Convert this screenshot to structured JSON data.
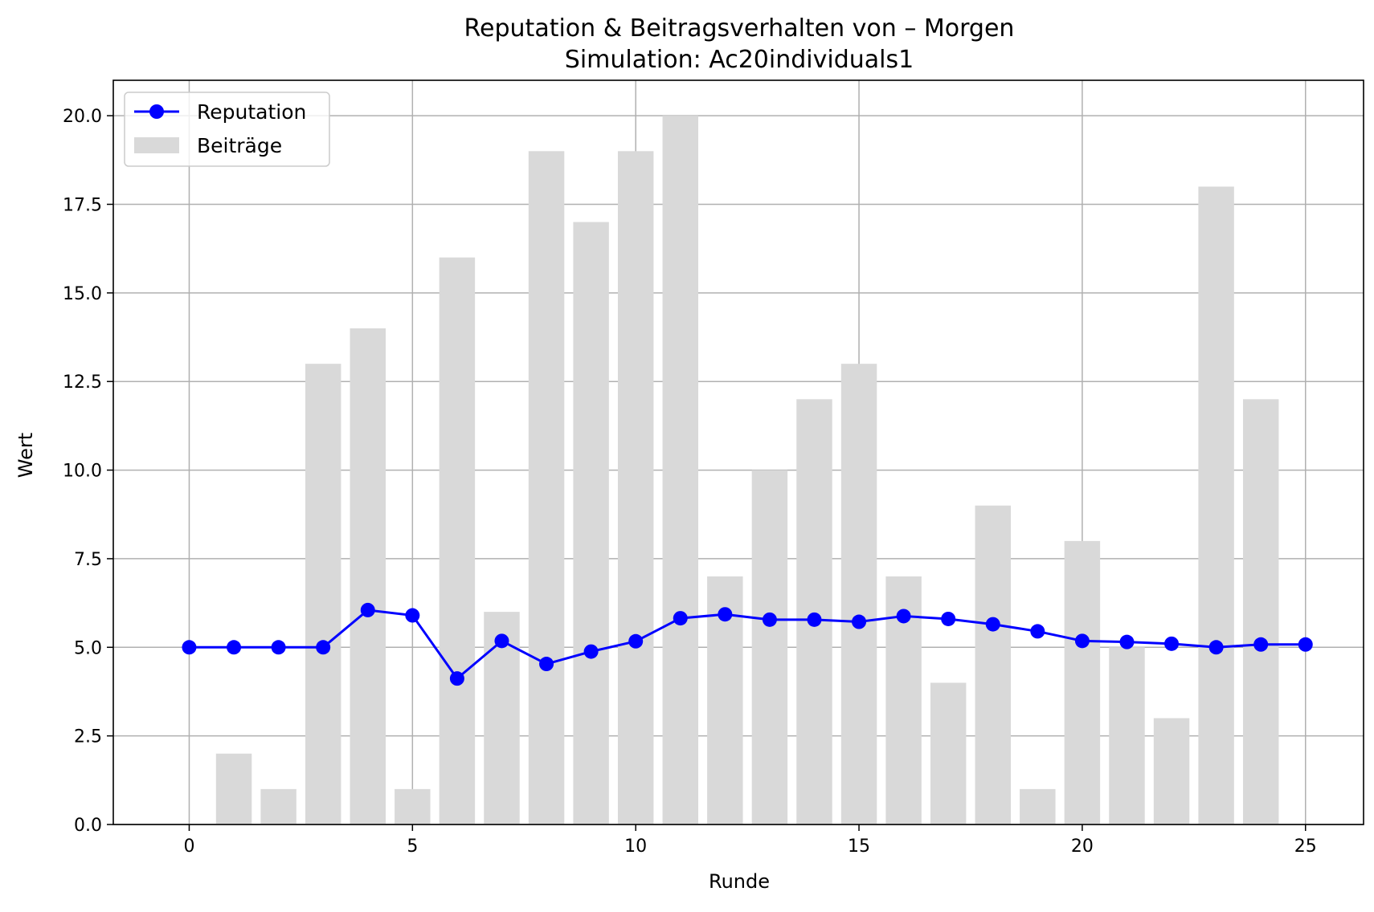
{
  "chart_data": {
    "type": "bar",
    "title": "Reputation & Beitragsverhalten von – Morgen",
    "subtitle": "Simulation: Ac20individuals1",
    "xlabel": "Runde",
    "ylabel": "Wert",
    "xlim": [
      -1.7,
      26.3
    ],
    "ylim": [
      0,
      21
    ],
    "x_ticks": [
      0,
      5,
      10,
      15,
      20,
      25
    ],
    "y_ticks": [
      0.0,
      2.5,
      5.0,
      7.5,
      10.0,
      12.5,
      15.0,
      17.5,
      20.0
    ],
    "x_tick_labels": [
      "0",
      "5",
      "10",
      "15",
      "20",
      "25"
    ],
    "y_tick_labels": [
      "0.0",
      "2.5",
      "5.0",
      "7.5",
      "10.0",
      "12.5",
      "15.0",
      "17.5",
      "20.0"
    ],
    "grid": true,
    "legend_position": "top-left",
    "x": [
      0,
      1,
      2,
      3,
      4,
      5,
      6,
      7,
      8,
      9,
      10,
      11,
      12,
      13,
      14,
      15,
      16,
      17,
      18,
      19,
      20,
      21,
      22,
      23,
      24,
      25
    ],
    "series": [
      {
        "name": "Reputation",
        "kind": "line",
        "marker": "circle",
        "color": "#0000ff",
        "values": [
          5.0,
          5.0,
          5.0,
          5.0,
          6.05,
          5.9,
          4.12,
          5.18,
          4.53,
          4.88,
          5.17,
          5.82,
          5.93,
          5.78,
          5.78,
          5.72,
          5.88,
          5.8,
          5.65,
          5.45,
          5.18,
          5.15,
          5.1,
          5.0,
          5.08,
          5.08
        ]
      },
      {
        "name": "Beiträge",
        "kind": "bar",
        "color": "#d9d9d9",
        "values": [
          0,
          2,
          1,
          13,
          14,
          1,
          16,
          6,
          19,
          17,
          19,
          20,
          7,
          10,
          12,
          13,
          7,
          4,
          9,
          1,
          8,
          5,
          3,
          18,
          12,
          0
        ]
      }
    ]
  }
}
